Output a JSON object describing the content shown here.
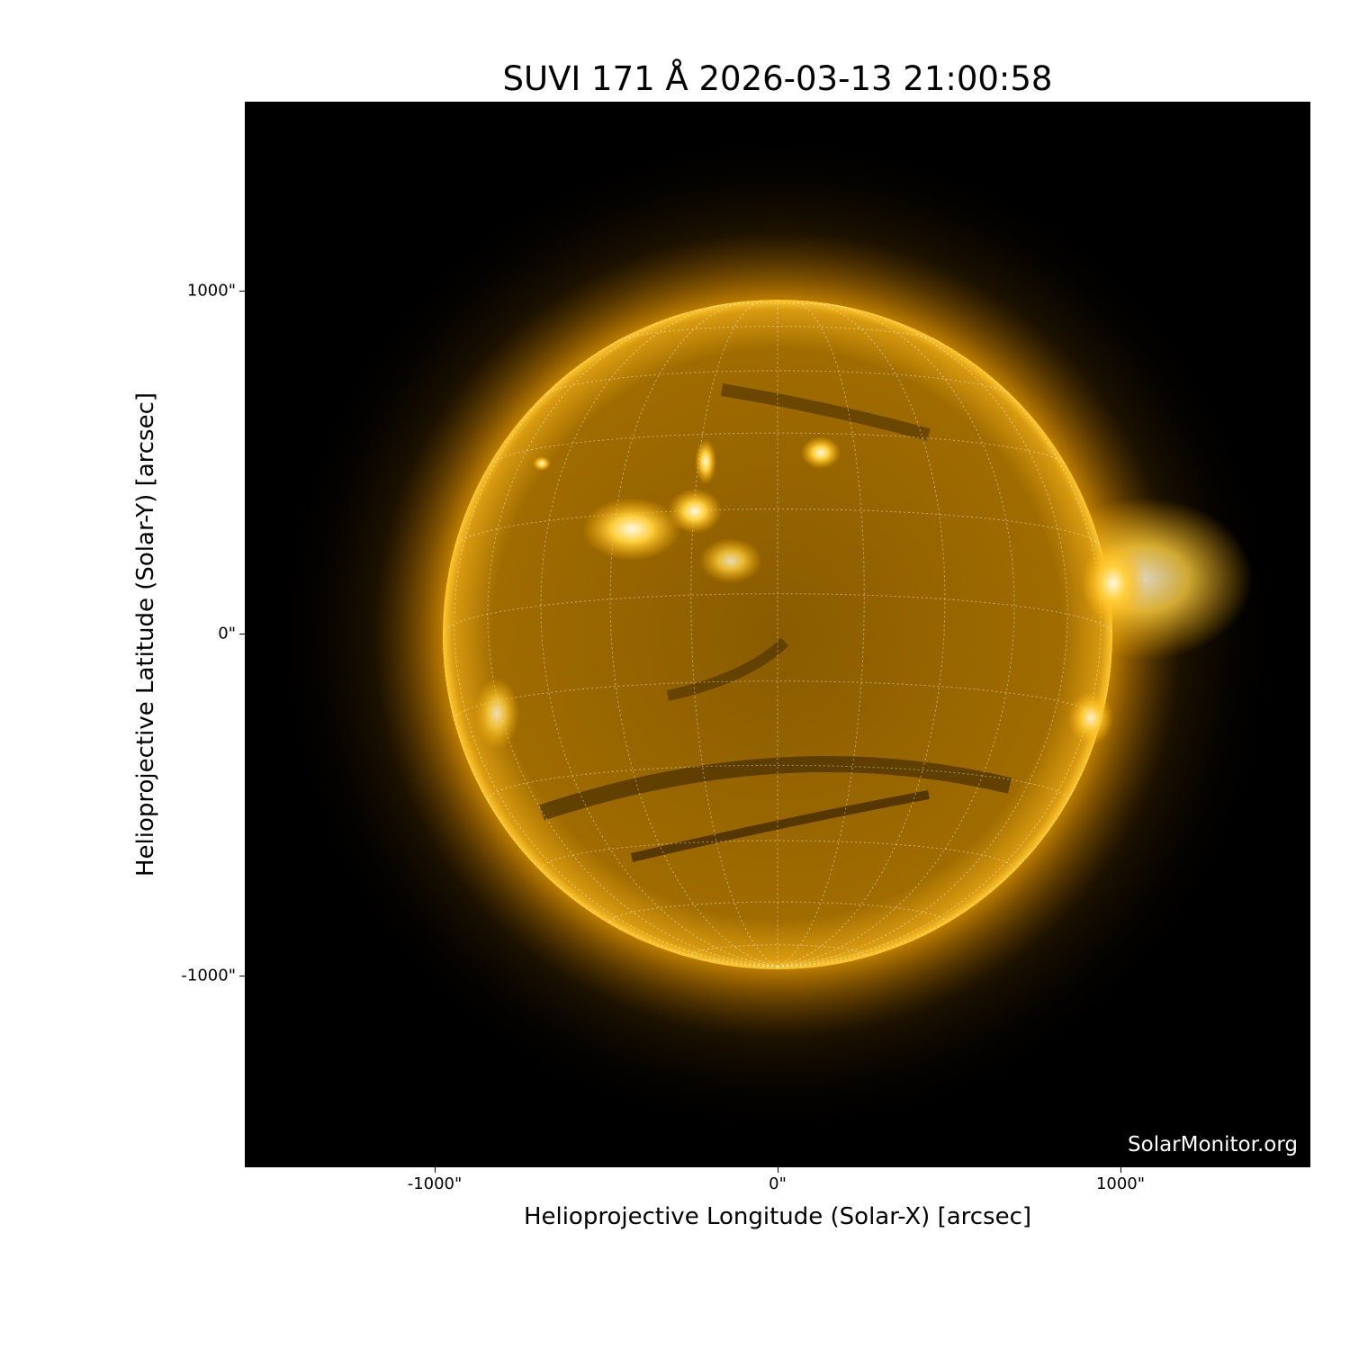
{
  "title": "SUVI 171 Å 2026-03-13 21:00:58",
  "xlabel": "Helioprojective Longitude (Solar-X) [arcsec]",
  "ylabel": "Helioprojective Latitude (Solar-Y) [arcsec]",
  "x_ticks": [
    "-1000\"",
    "0\"",
    "1000\""
  ],
  "y_ticks": [
    "1000\"",
    "0\"",
    "-1000\""
  ],
  "watermark": "SolarMonitor.org",
  "colors": {
    "disk": "#b07800",
    "limb": "#ffc020",
    "background": "#000000"
  }
}
